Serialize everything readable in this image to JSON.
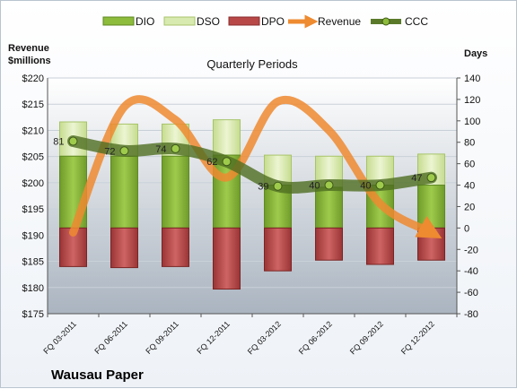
{
  "chart_data": {
    "type": "bar",
    "title": "Quarterly Periods",
    "brand": "Wausau Paper",
    "left_axis_label_line1": "Revenue",
    "left_axis_label_line2": "$millions",
    "right_axis_label": "Days",
    "categories": [
      "FQ 03-2011",
      "FQ 06-2011",
      "FQ 09-2011",
      "FQ 12-2011",
      "FQ 03-2012",
      "FQ 06-2012",
      "FQ 09-2012",
      "FQ 12-2012"
    ],
    "left_ylim": [
      175,
      220
    ],
    "left_ticks": [
      "$175",
      "$180",
      "$185",
      "$190",
      "$195",
      "$200",
      "$205",
      "$210",
      "$215",
      "$220"
    ],
    "right_ylim": [
      -80,
      140
    ],
    "right_ticks": [
      "-80",
      "-60",
      "-40",
      "-20",
      "0",
      "20",
      "40",
      "60",
      "80",
      "100",
      "120",
      "140"
    ],
    "series": [
      {
        "name": "DIO",
        "axis": "right",
        "values": [
          67,
          67,
          67,
          68,
          40,
          38,
          40,
          40
        ],
        "color": "#8dbb3c"
      },
      {
        "name": "DSO",
        "axis": "right",
        "values": [
          32,
          30,
          30,
          33,
          28,
          29,
          27,
          29
        ],
        "color": "#d9eab0"
      },
      {
        "name": "DPO",
        "axis": "right",
        "values": [
          -36,
          -37,
          -36,
          -57,
          -40,
          -30,
          -34,
          -30
        ],
        "color": "#b84848"
      },
      {
        "name": "Revenue",
        "axis": "left",
        "values": [
          190.5,
          214.5,
          212.0,
          201.0,
          215.5,
          210.0,
          196.0,
          190.5
        ],
        "color": "#ee8a30"
      },
      {
        "name": "CCC",
        "axis": "right",
        "values": [
          81,
          72,
          74,
          62,
          39,
          40,
          40,
          47
        ],
        "color": "#5a7a2a"
      }
    ],
    "ccc_labels": [
      "81",
      "72",
      "74",
      "62",
      "39",
      "40",
      "40",
      "47"
    ],
    "legend_position": "top"
  }
}
